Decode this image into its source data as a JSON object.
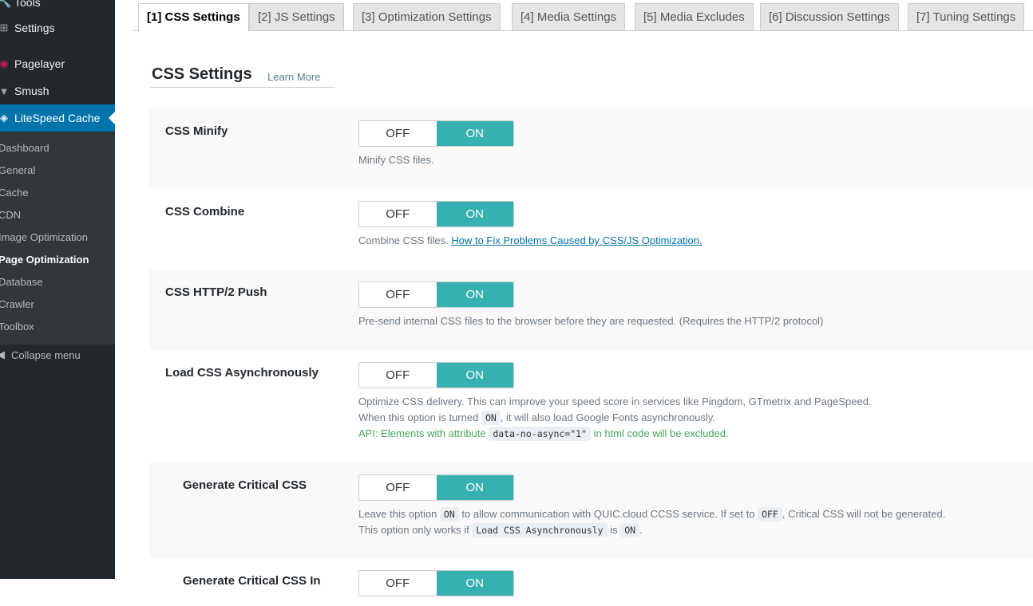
{
  "sidebar": {
    "menu": [
      {
        "label": "Tools",
        "icon": "wrench-icon"
      },
      {
        "label": "Settings",
        "icon": "settings-icon"
      },
      {
        "label": "Pagelayer",
        "icon": "pagelayer-icon"
      },
      {
        "label": "Smush",
        "icon": "smush-icon"
      },
      {
        "label": "LiteSpeed Cache",
        "icon": "litespeed-icon"
      }
    ],
    "submenu": [
      "Dashboard",
      "General",
      "Cache",
      "CDN",
      "Image Optimization",
      "Page Optimization",
      "Database",
      "Crawler",
      "Toolbox"
    ],
    "current": "Page Optimization",
    "collapse": "Collapse menu"
  },
  "tabs": [
    "[1] CSS Settings",
    "[2] JS Settings",
    "[3] Optimization Settings",
    "[4] Media Settings",
    "[5] Media Excludes",
    "[6] Discussion Settings",
    "[7] Tuning Settings"
  ],
  "active_tab": "[1] CSS Settings",
  "section": {
    "title": "CSS Settings",
    "learn_more": "Learn More"
  },
  "toggle": {
    "off": "OFF",
    "on": "ON"
  },
  "accent_color": "#36b0b0",
  "settings": [
    {
      "label": "CSS Minify",
      "value": "ON",
      "desc": "Minify CSS files."
    },
    {
      "label": "CSS Combine",
      "value": "ON",
      "desc": "Combine CSS files.",
      "link": "How to Fix Problems Caused by CSS/JS Optimization."
    },
    {
      "label": "CSS HTTP/2 Push",
      "value": "ON",
      "desc": "Pre-send internal CSS files to the browser before they are requested. (Requires the HTTP/2 protocol)"
    },
    {
      "label": "Load CSS Asynchronously",
      "value": "ON",
      "desc": "Optimize CSS delivery. This can improve your speed score in services like Pingdom, GTmetrix and PageSpeed.",
      "desc2a": "When this option is turned",
      "desc2code": "ON",
      "desc2b": ", it will also load Google Fonts asynchronously.",
      "api_a": "API: Elements with attribute",
      "api_code": "data-no-async=\"1\"",
      "api_b": "in html code will be excluded."
    },
    {
      "label": "Generate Critical CSS",
      "value": "ON",
      "d1a": "Leave this option",
      "d1code": "ON",
      "d1b": "to allow communication with QUIC.cloud CCSS service. If set to",
      "d1code2": "OFF",
      "d1c": ", Critical CSS will not be generated.",
      "d2a": "This option only works if",
      "d2code": "Load CSS Asynchronously",
      "d2b": "is",
      "d2code2": "ON",
      "d2c": "."
    },
    {
      "label": "Generate Critical CSS In",
      "value": "ON"
    }
  ]
}
